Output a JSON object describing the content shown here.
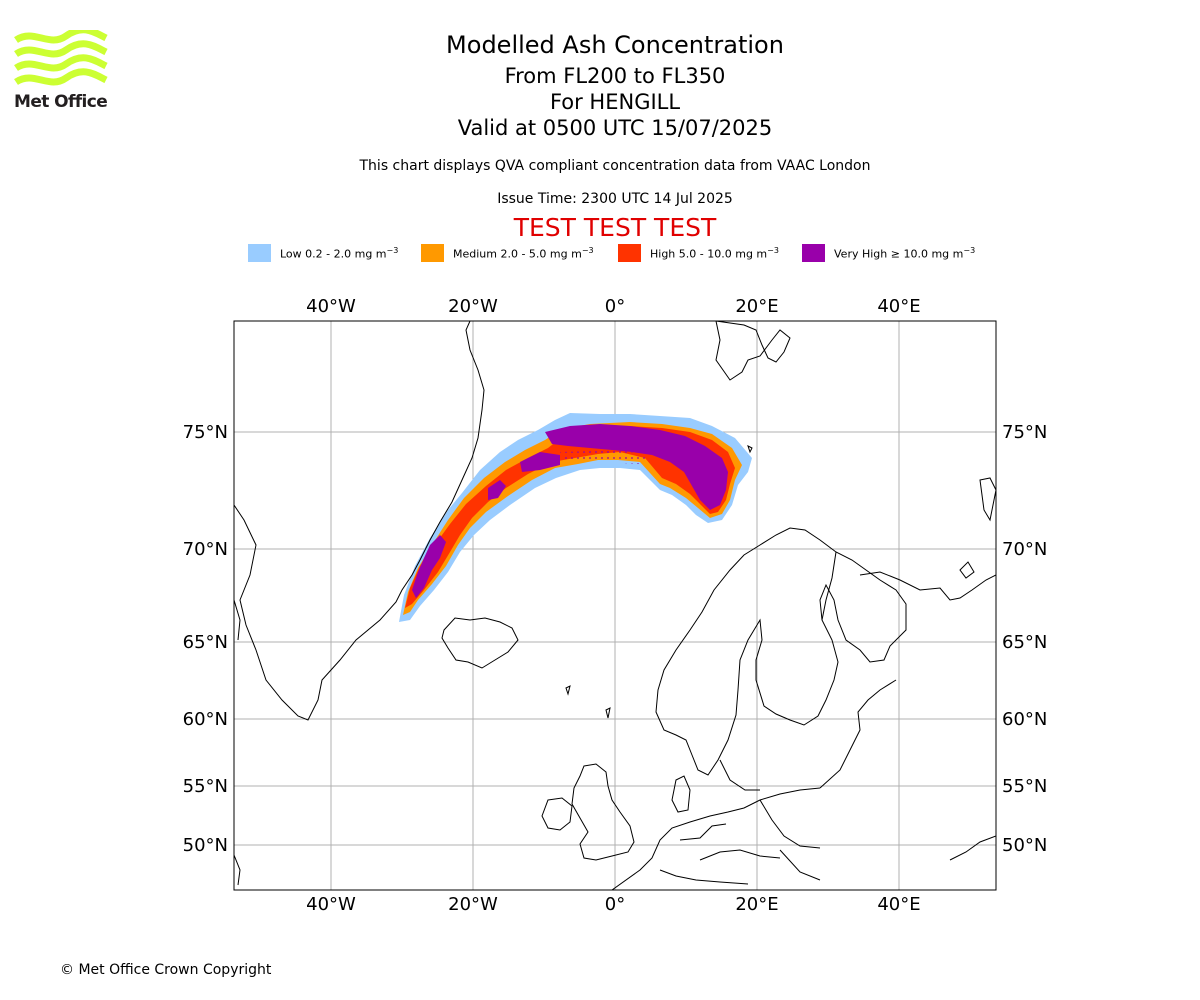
{
  "logo": {
    "text": "Met Office",
    "color": "#ccff33"
  },
  "header": {
    "title": "Modelled Ash Concentration",
    "levels": "From FL200 to FL350",
    "location": "For HENGILL",
    "valid": "Valid at 0500 UTC 15/07/2025",
    "note": "This chart displays QVA compliant concentration data from VAAC London",
    "issue": "Issue Time: 2300 UTC 14 Jul 2025",
    "test_banner": "TEST TEST TEST",
    "test_color": "#e00000"
  },
  "legend": [
    {
      "label": "Low 0.2 - 2.0 mg m",
      "color": "#99ccff"
    },
    {
      "label": "Medium 2.0 - 5.0 mg m",
      "color": "#ff9900"
    },
    {
      "label": "High 5.0 - 10.0 mg m",
      "color": "#ff3300"
    },
    {
      "label": "Very High ≥ 10.0 mg m",
      "color": "#9900aa"
    }
  ],
  "legend_unit_exponent": "−3",
  "map": {
    "lon_ticks": [
      "40°W",
      "20°W",
      "0°",
      "20°E",
      "40°E"
    ],
    "lat_ticks": [
      "75°N",
      "70°N",
      "65°N",
      "60°N",
      "55°N",
      "50°N"
    ],
    "lon_values": [
      -40,
      -20,
      0,
      20,
      40
    ],
    "lat_values": [
      75,
      70,
      65,
      60,
      55,
      50
    ]
  },
  "footer": {
    "copyright": "© Met Office Crown Copyright"
  }
}
